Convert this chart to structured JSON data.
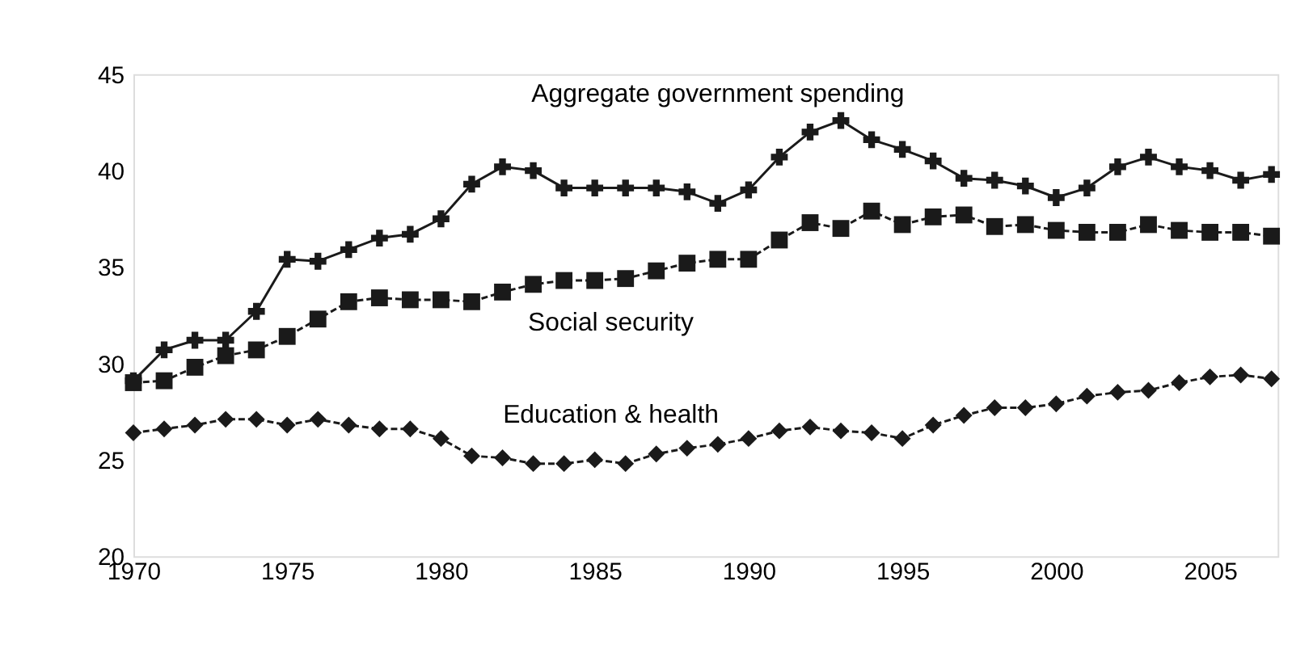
{
  "chart_data": {
    "type": "line",
    "x": [
      1970,
      1971,
      1972,
      1973,
      1974,
      1975,
      1976,
      1977,
      1978,
      1979,
      1980,
      1981,
      1982,
      1983,
      1984,
      1985,
      1986,
      1987,
      1988,
      1989,
      1990,
      1991,
      1992,
      1993,
      1994,
      1995,
      1996,
      1997,
      1998,
      1999,
      2000,
      2001,
      2002,
      2003,
      2004,
      2005,
      2006,
      2007
    ],
    "series": [
      {
        "name": "Aggregate government spending",
        "color": "#1a1a1a",
        "marker": "cross",
        "line_style": "solid",
        "values": [
          29.1,
          30.7,
          31.2,
          31.2,
          32.7,
          35.4,
          35.3,
          35.9,
          36.5,
          36.7,
          37.5,
          39.3,
          40.2,
          40.0,
          39.1,
          39.1,
          39.1,
          39.1,
          38.9,
          38.3,
          39.0,
          40.7,
          42.0,
          42.6,
          41.6,
          41.1,
          40.5,
          39.6,
          39.5,
          39.2,
          38.6,
          39.1,
          40.2,
          40.7,
          40.2,
          40.0,
          39.5,
          39.8
        ]
      },
      {
        "name": "Social security",
        "color": "#1a1a1a",
        "marker": "square",
        "line_style": "dashed",
        "values": [
          29.0,
          29.1,
          29.8,
          30.4,
          30.7,
          31.4,
          32.3,
          33.2,
          33.4,
          33.3,
          33.3,
          33.2,
          33.7,
          34.1,
          34.3,
          34.3,
          34.4,
          34.8,
          35.2,
          35.4,
          35.4,
          36.4,
          37.3,
          37.0,
          37.9,
          37.2,
          37.6,
          37.7,
          37.1,
          37.2,
          36.9,
          36.8,
          36.8,
          37.2,
          36.9,
          36.8,
          36.8,
          36.6
        ]
      },
      {
        "name": "Education & health",
        "color": "#1a1a1a",
        "marker": "diamond",
        "line_style": "dashed",
        "values": [
          26.4,
          26.6,
          26.8,
          27.1,
          27.1,
          26.8,
          27.1,
          26.8,
          26.6,
          26.6,
          26.1,
          25.2,
          25.1,
          24.8,
          24.8,
          25.0,
          24.8,
          25.3,
          25.6,
          25.8,
          26.1,
          26.5,
          26.7,
          26.5,
          26.4,
          26.1,
          26.8,
          27.3,
          27.7,
          27.7,
          27.9,
          28.3,
          28.5,
          28.6,
          29.0,
          29.3,
          29.4,
          29.2
        ]
      }
    ],
    "xlim": [
      1970,
      2007.2
    ],
    "xticks": [
      1970,
      1975,
      1980,
      1985,
      1990,
      1995,
      2000,
      2005
    ],
    "ylim": [
      20,
      45
    ],
    "yticks": [
      20,
      25,
      30,
      35,
      40,
      45
    ],
    "grid": false
  }
}
